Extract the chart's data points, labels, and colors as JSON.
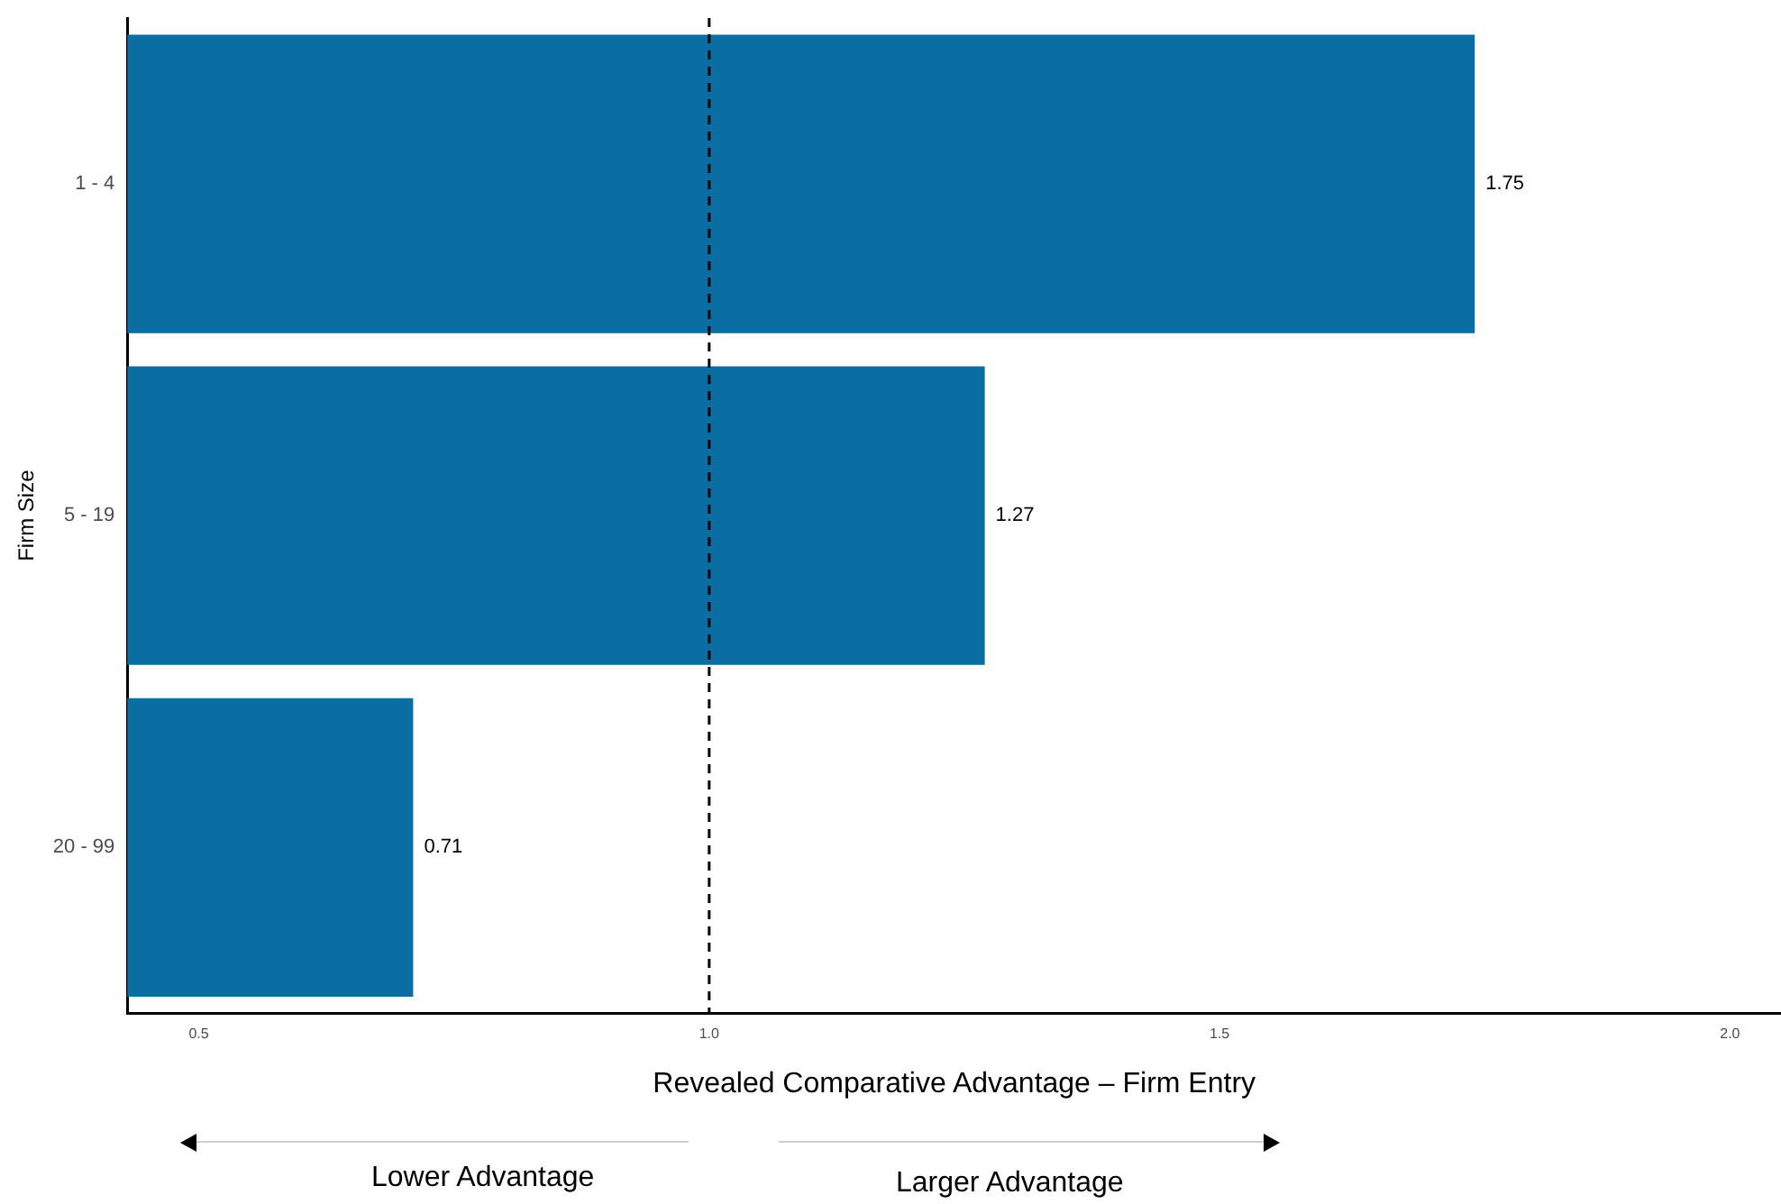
{
  "chart_data": {
    "type": "bar",
    "orientation": "horizontal",
    "xlabel": "Revealed Comparative Advantage – Firm Entry",
    "ylabel": "Firm Size",
    "categories": [
      "1 - 4",
      "5 - 19",
      "20 - 99"
    ],
    "values": [
      1.75,
      1.27,
      0.71
    ],
    "color": "#0a6ea3",
    "xlim": [
      0.43,
      2.05
    ],
    "xticks": [
      0.5,
      {
        "value": 1,
        "label": "1.0"
      },
      1.5,
      {
        "value": 2,
        "label": "2.0"
      }
    ],
    "data_labels": true,
    "grid": false,
    "legend": false,
    "ref_lines": [
      {
        "axis": "x",
        "value": 1.0,
        "line_style": "dashed",
        "color": "#000000"
      }
    ],
    "annotations": [
      "Lower Advantage",
      "Larger Advantage"
    ]
  }
}
